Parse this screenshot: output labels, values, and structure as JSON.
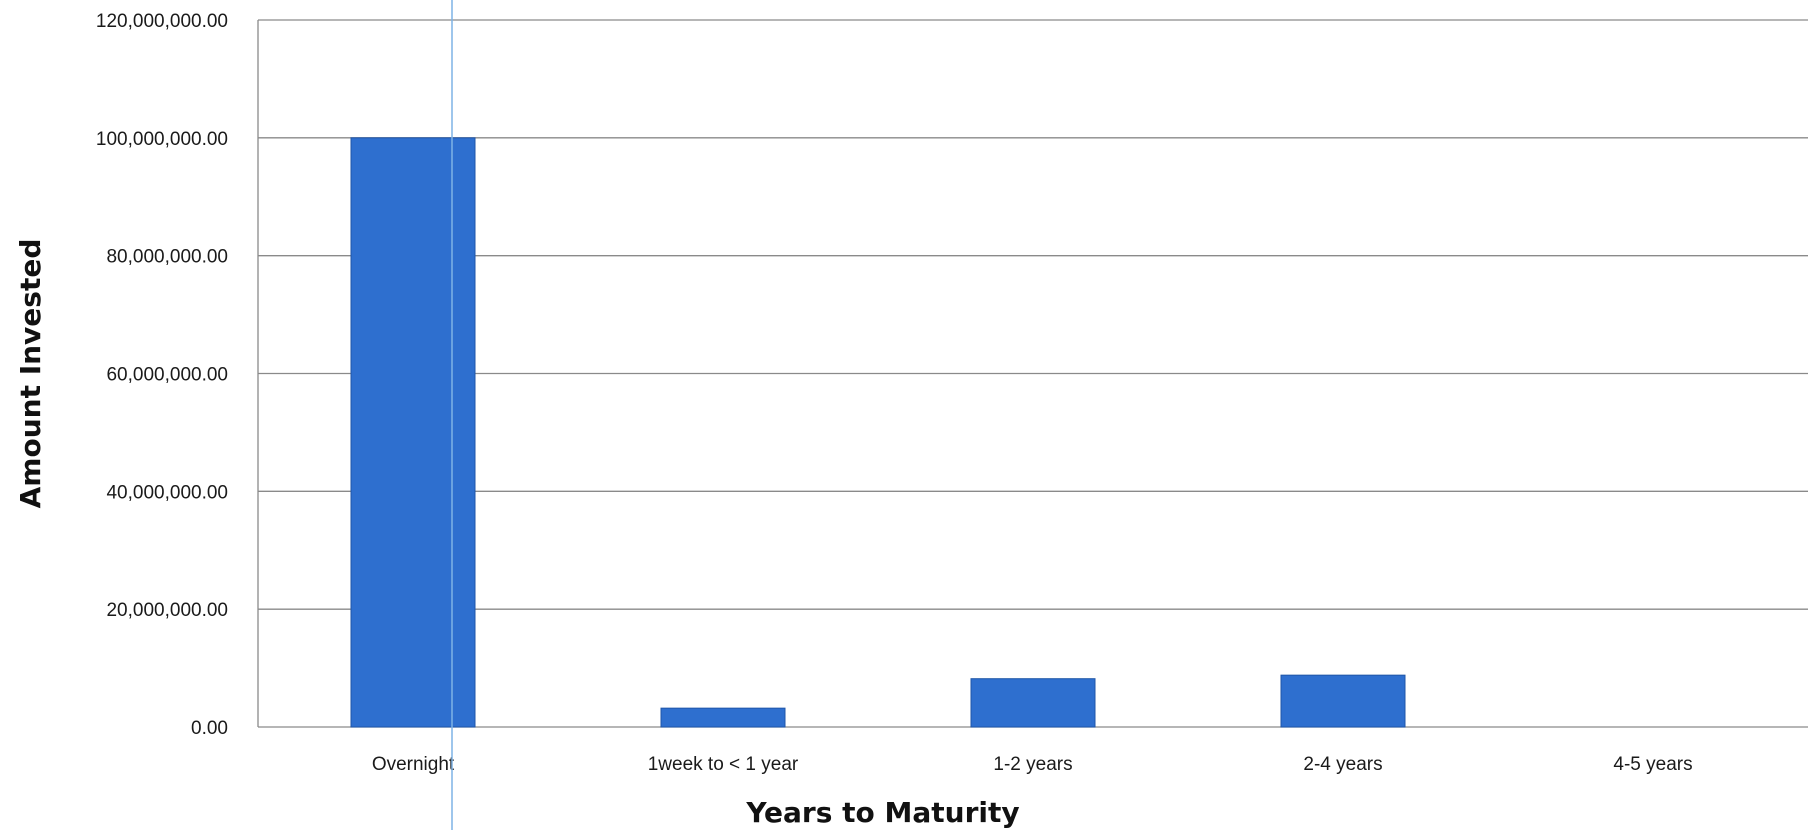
{
  "chart_data": {
    "type": "bar",
    "title": "",
    "xlabel": "Years to Maturity",
    "ylabel": "Amount Invested",
    "categories": [
      "Overnight",
      "1week to < 1 year",
      "1-2 years",
      "2-4 years",
      "4-5 years"
    ],
    "values": [
      100000000,
      3200000,
      8200000,
      8800000,
      0
    ],
    "ylim": [
      0,
      120000000
    ],
    "yticks": [
      "0.00",
      "20,000,000.00",
      "40,000,000.00",
      "60,000,000.00",
      "80,000,000.00",
      "100,000,000.00",
      "120,000,000.00"
    ],
    "ytick_values": [
      0,
      20000000,
      40000000,
      60000000,
      80000000,
      100000000,
      120000000
    ],
    "grid": true,
    "legend": "none",
    "bar_color": "#2e6fcf",
    "bar_edge_color": "#1f56a8",
    "marker_line_color": "#7fb3e6"
  }
}
